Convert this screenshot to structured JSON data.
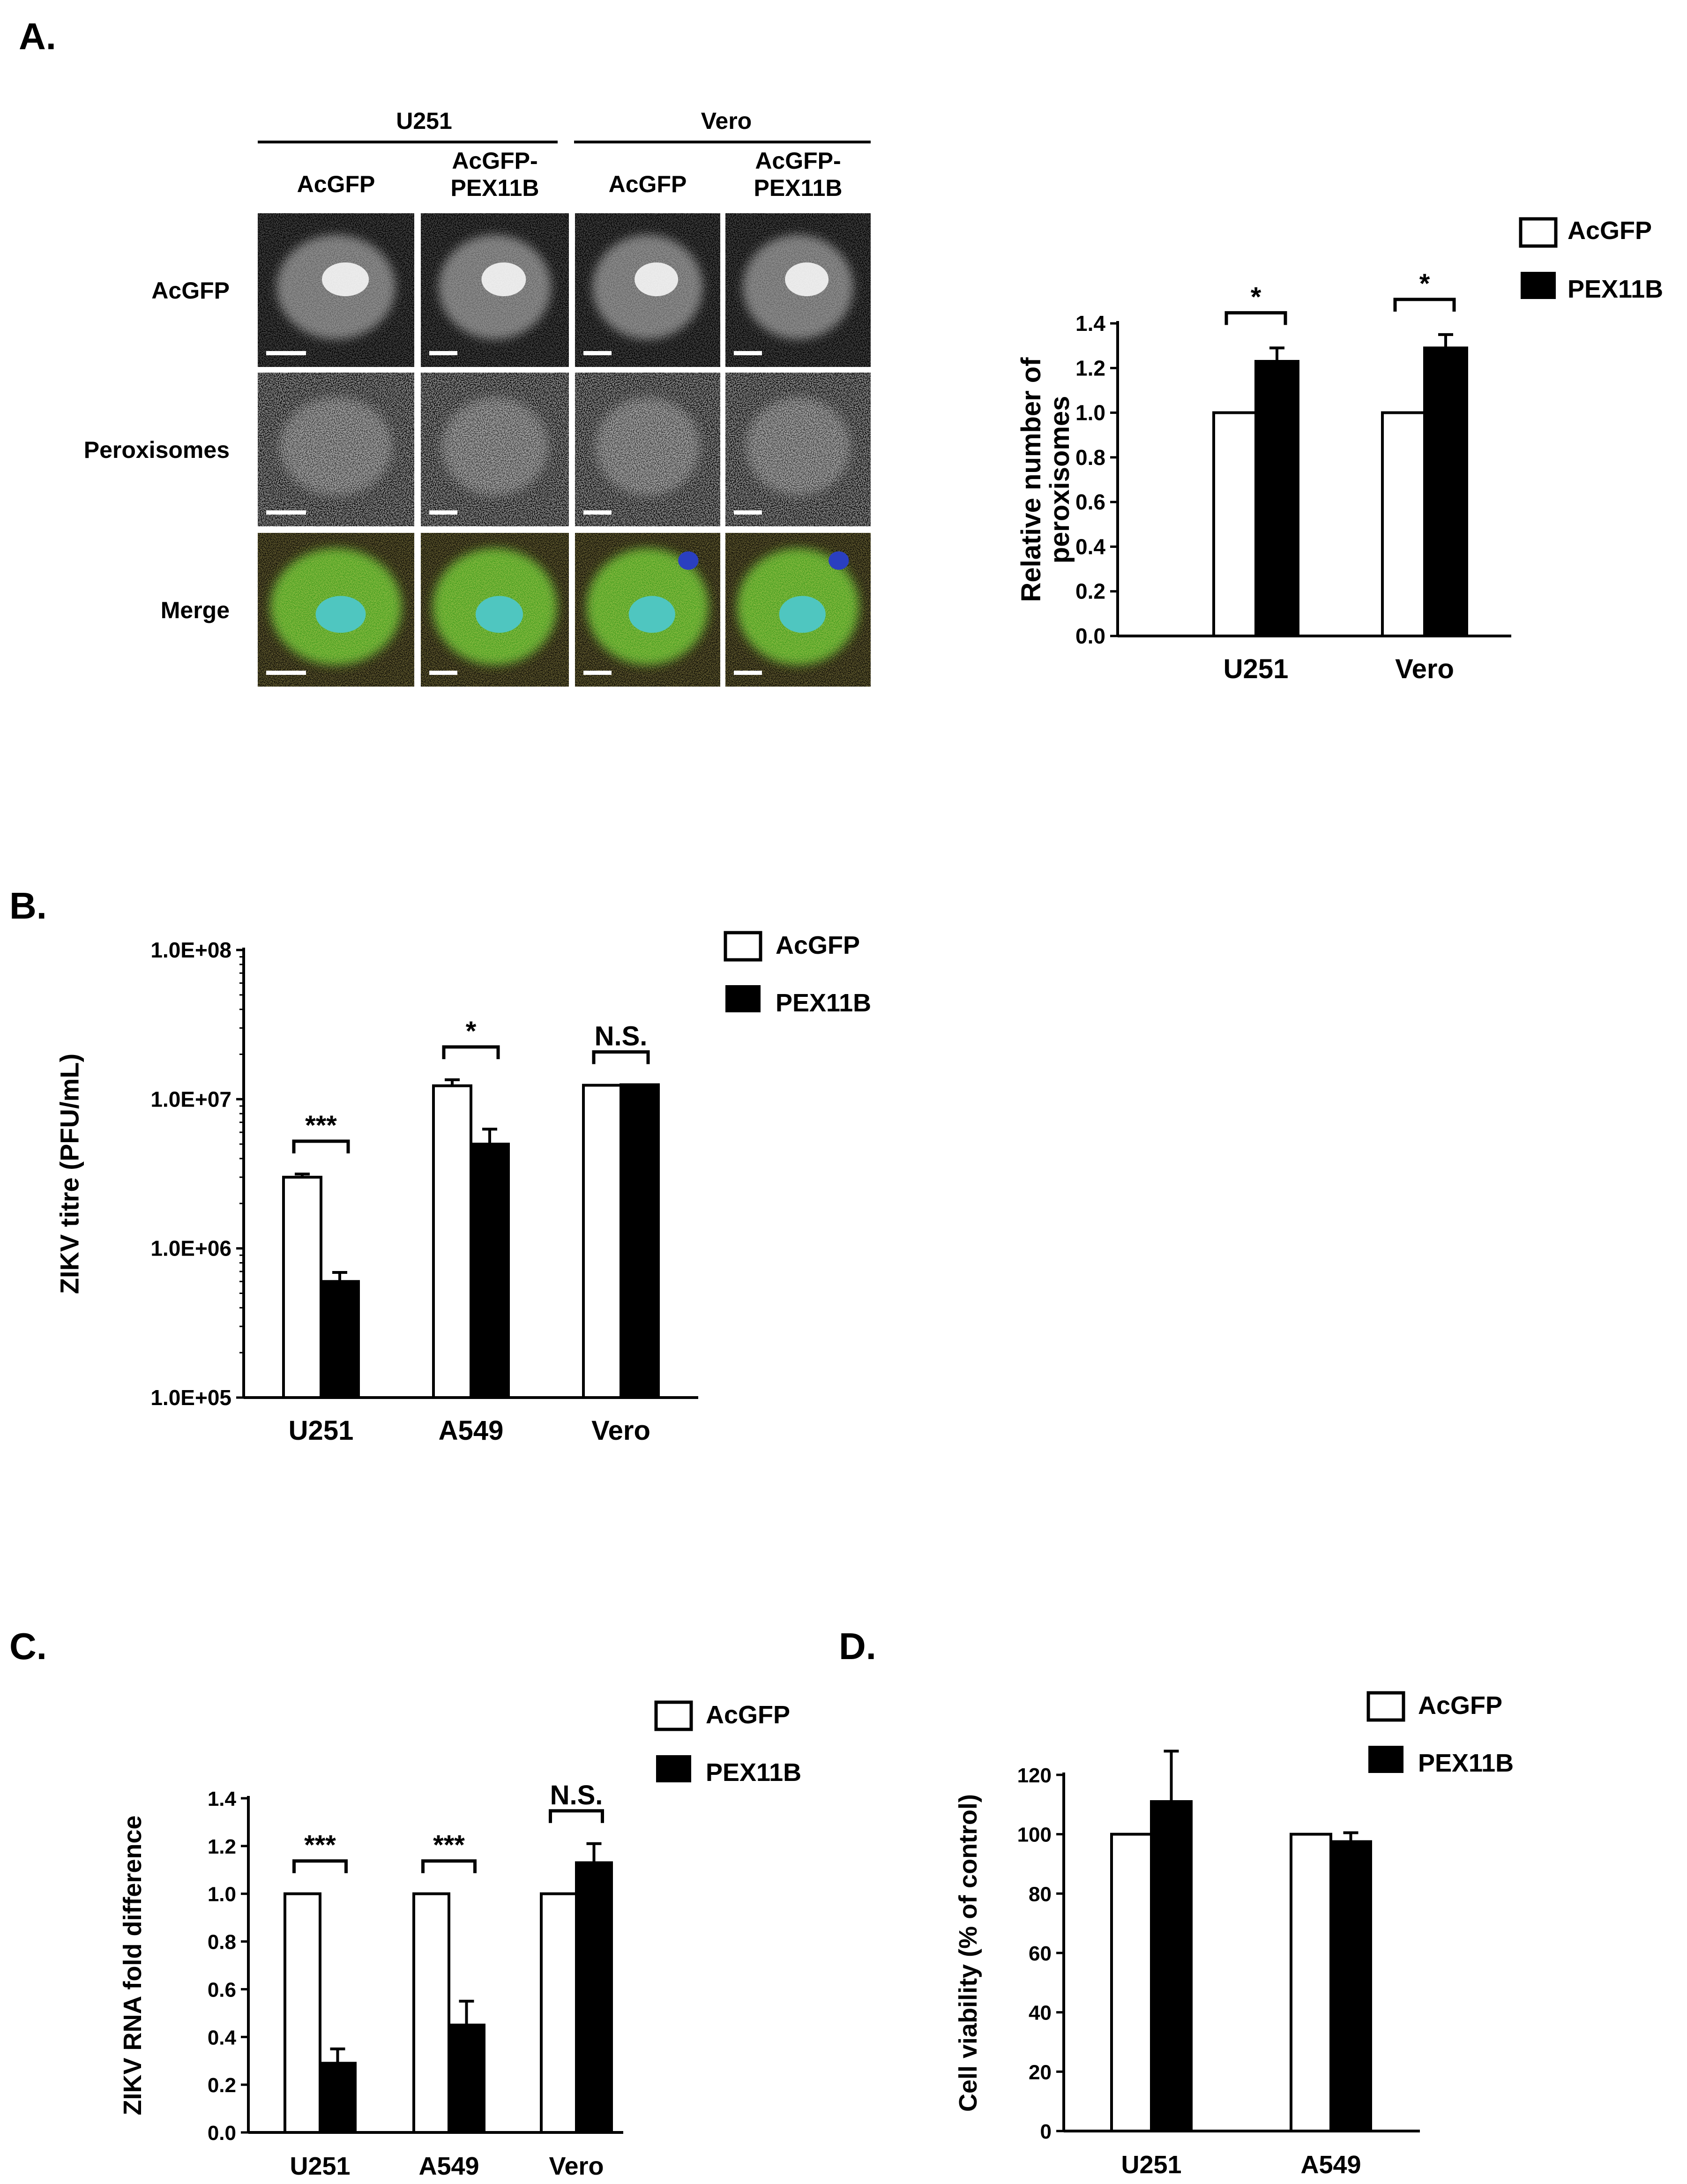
{
  "panels": {
    "a": "A.",
    "b": "B.",
    "c": "C.",
    "d": "D."
  },
  "microscopy": {
    "cell_lines": [
      "U251",
      "Vero"
    ],
    "columns": [
      "AcGFP",
      "AcGFP-\nPEX11B",
      "AcGFP",
      "AcGFP-\nPEX11B"
    ],
    "rows": [
      "AcGFP",
      "Peroxisomes",
      "Merge"
    ],
    "colors": {
      "acgfp_channel": "#8a8a8a",
      "merge_cytoplasm": "#3c9a1e",
      "merge_nucleus": "#4fc6c0",
      "dapi": "#2a3fc0"
    }
  },
  "legend": {
    "open": "AcGFP",
    "filled": "PEX11B"
  },
  "chart_data": [
    {
      "id": "A-right",
      "type": "bar",
      "categories": [
        "U251",
        "Vero"
      ],
      "series": [
        {
          "name": "AcGFP",
          "values": [
            1.0,
            1.0
          ],
          "errors": [
            0,
            0
          ]
        },
        {
          "name": "PEX11B",
          "values": [
            1.23,
            1.29
          ],
          "errors": [
            0.06,
            0.06
          ]
        }
      ],
      "significance": [
        "*",
        "*"
      ],
      "ylabel": "Relative number of\nperoxisomes",
      "ylim": [
        0,
        1.4
      ],
      "yticks": [
        "0.0",
        "0.2",
        "0.4",
        "0.6",
        "0.8",
        "1.0",
        "1.2",
        "1.4"
      ],
      "grid": false,
      "legend_position": "top-right"
    },
    {
      "id": "B",
      "type": "bar",
      "scale": "log",
      "categories": [
        "U251",
        "A549",
        "Vero"
      ],
      "series": [
        {
          "name": "AcGFP",
          "values": [
            3000000,
            12300000,
            12400000
          ],
          "errors": [
            150000,
            1200000,
            0
          ]
        },
        {
          "name": "PEX11B",
          "values": [
            600000,
            5000000,
            12500000
          ],
          "errors": [
            90000,
            1300000,
            0
          ]
        }
      ],
      "significance": [
        "***",
        "*",
        "N.S."
      ],
      "ylabel": "ZIKV titre (PFU/mL)",
      "ylim": [
        100000,
        100000000
      ],
      "yticks": [
        "1.0E+05",
        "1.0E+06",
        "1.0E+07",
        "1.0E+08"
      ],
      "grid": false,
      "legend_position": "top-right"
    },
    {
      "id": "C",
      "type": "bar",
      "categories": [
        "U251",
        "A549",
        "Vero"
      ],
      "series": [
        {
          "name": "AcGFP",
          "values": [
            1.0,
            1.0,
            1.0
          ],
          "errors": [
            0,
            0,
            0
          ]
        },
        {
          "name": "PEX11B",
          "values": [
            0.29,
            0.45,
            1.13
          ],
          "errors": [
            0.06,
            0.1,
            0.08
          ]
        }
      ],
      "significance": [
        "***",
        "***",
        "N.S."
      ],
      "ylabel": "ZIKV RNA fold difference",
      "ylim": [
        0,
        1.4
      ],
      "yticks": [
        "0.0",
        "0.2",
        "0.4",
        "0.6",
        "0.8",
        "1.0",
        "1.2",
        "1.4"
      ],
      "grid": false,
      "legend_position": "top-right"
    },
    {
      "id": "D",
      "type": "bar",
      "categories": [
        "U251",
        "A549"
      ],
      "series": [
        {
          "name": "AcGFP",
          "values": [
            100,
            100
          ],
          "errors": [
            0,
            0
          ]
        },
        {
          "name": "PEX11B",
          "values": [
            111,
            97.5
          ],
          "errors": [
            17,
            3
          ]
        }
      ],
      "significance": [
        "",
        ""
      ],
      "ylabel": "Cell viability (% of control)",
      "ylim": [
        0,
        120
      ],
      "yticks": [
        "0",
        "20",
        "40",
        "60",
        "80",
        "100",
        "120"
      ],
      "grid": false,
      "legend_position": "top-right"
    }
  ]
}
